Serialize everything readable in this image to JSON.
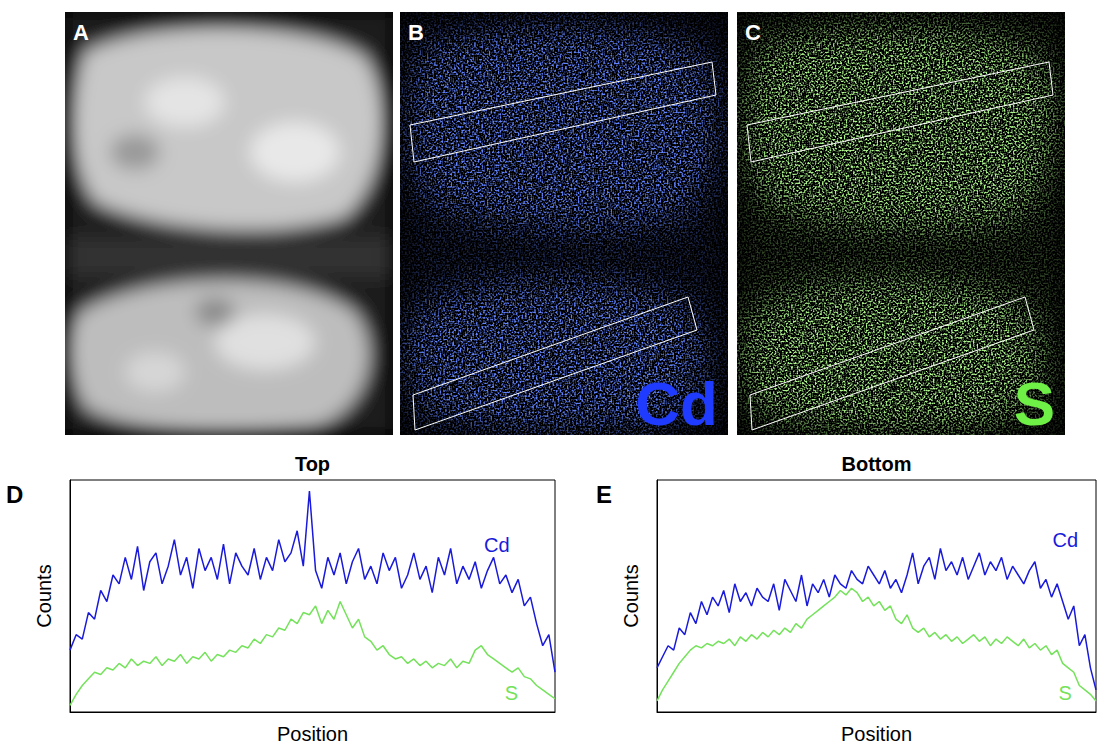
{
  "images": [
    {
      "panel": "A"
    },
    {
      "panel": "B",
      "label": "Cd",
      "color": "#1f3bff"
    },
    {
      "panel": "C",
      "label": "S",
      "color": "#6ef046"
    }
  ],
  "chart_data": [
    {
      "panel": "D",
      "type": "line",
      "title": "Top",
      "x_label": "Position",
      "y_label": "Counts",
      "xlim": [
        0,
        79
      ],
      "ylim": [
        0,
        105
      ],
      "tick_labels": false,
      "grid": false,
      "x": [
        0,
        1,
        2,
        3,
        4,
        5,
        6,
        7,
        8,
        9,
        10,
        11,
        12,
        13,
        14,
        15,
        16,
        17,
        18,
        19,
        20,
        21,
        22,
        23,
        24,
        25,
        26,
        27,
        28,
        29,
        30,
        31,
        32,
        33,
        34,
        35,
        36,
        37,
        38,
        39,
        40,
        41,
        42,
        43,
        44,
        45,
        46,
        47,
        48,
        49,
        50,
        51,
        52,
        53,
        54,
        55,
        56,
        57,
        58,
        59,
        60,
        61,
        62,
        63,
        64,
        65,
        66,
        67,
        68,
        69,
        70,
        71,
        72,
        73,
        74,
        75,
        76,
        77,
        78,
        79
      ],
      "series": [
        {
          "name": "Cd",
          "color": "#1a1adb",
          "values": [
            28,
            35,
            33,
            45,
            42,
            55,
            50,
            62,
            58,
            70,
            60,
            75,
            55,
            68,
            72,
            58,
            66,
            78,
            62,
            70,
            56,
            74,
            64,
            70,
            60,
            76,
            58,
            72,
            66,
            62,
            74,
            60,
            70,
            64,
            78,
            68,
            72,
            82,
            66,
            100,
            64,
            56,
            70,
            62,
            72,
            58,
            68,
            74,
            60,
            66,
            58,
            72,
            64,
            70,
            56,
            62,
            72,
            60,
            66,
            54,
            70,
            62,
            74,
            58,
            66,
            60,
            68,
            56,
            64,
            70,
            58,
            62,
            54,
            60,
            48,
            52,
            40,
            30,
            35,
            18
          ]
        },
        {
          "name": "S",
          "color": "#74e25a",
          "values": [
            3,
            8,
            12,
            15,
            18,
            17,
            20,
            19,
            22,
            20,
            24,
            21,
            23,
            22,
            25,
            21,
            24,
            23,
            26,
            22,
            25,
            24,
            27,
            23,
            26,
            25,
            28,
            27,
            30,
            29,
            33,
            31,
            35,
            34,
            38,
            37,
            42,
            40,
            45,
            44,
            48,
            40,
            46,
            42,
            50,
            44,
            38,
            42,
            34,
            32,
            28,
            30,
            26,
            24,
            25,
            22,
            24,
            21,
            23,
            20,
            22,
            21,
            24,
            20,
            23,
            22,
            28,
            30,
            26,
            24,
            22,
            20,
            18,
            20,
            16,
            15,
            12,
            10,
            8,
            6
          ]
        }
      ]
    },
    {
      "panel": "E",
      "type": "line",
      "title": "Bottom",
      "x_label": "Position",
      "y_label": "Counts",
      "xlim": [
        0,
        79
      ],
      "ylim": [
        0,
        105
      ],
      "tick_labels": false,
      "grid": false,
      "x": [
        0,
        1,
        2,
        3,
        4,
        5,
        6,
        7,
        8,
        9,
        10,
        11,
        12,
        13,
        14,
        15,
        16,
        17,
        18,
        19,
        20,
        21,
        22,
        23,
        24,
        25,
        26,
        27,
        28,
        29,
        30,
        31,
        32,
        33,
        34,
        35,
        36,
        37,
        38,
        39,
        40,
        41,
        42,
        43,
        44,
        45,
        46,
        47,
        48,
        49,
        50,
        51,
        52,
        53,
        54,
        55,
        56,
        57,
        58,
        59,
        60,
        61,
        62,
        63,
        64,
        65,
        66,
        67,
        68,
        69,
        70,
        71,
        72,
        73,
        74,
        75,
        76,
        77,
        78,
        79
      ],
      "series": [
        {
          "name": "Cd",
          "color": "#1a1adb",
          "values": [
            20,
            25,
            30,
            28,
            38,
            35,
            45,
            40,
            50,
            44,
            52,
            48,
            55,
            45,
            58,
            50,
            54,
            48,
            56,
            52,
            50,
            58,
            46,
            60,
            55,
            50,
            62,
            48,
            58,
            54,
            60,
            52,
            62,
            58,
            56,
            64,
            60,
            58,
            66,
            62,
            58,
            64,
            56,
            60,
            54,
            62,
            72,
            58,
            66,
            70,
            60,
            74,
            64,
            68,
            62,
            70,
            60,
            66,
            72,
            62,
            68,
            64,
            70,
            60,
            66,
            62,
            58,
            64,
            68,
            56,
            60,
            52,
            58,
            50,
            42,
            48,
            30,
            35,
            20,
            10
          ]
        },
        {
          "name": "S",
          "color": "#74e25a",
          "values": [
            5,
            10,
            14,
            18,
            22,
            25,
            28,
            30,
            29,
            31,
            30,
            32,
            31,
            33,
            30,
            34,
            32,
            35,
            33,
            36,
            34,
            37,
            35,
            38,
            36,
            40,
            38,
            42,
            44,
            46,
            48,
            50,
            52,
            55,
            53,
            56,
            54,
            50,
            52,
            48,
            50,
            46,
            48,
            42,
            40,
            44,
            38,
            36,
            38,
            34,
            36,
            33,
            35,
            32,
            34,
            31,
            33,
            35,
            32,
            34,
            30,
            33,
            31,
            34,
            32,
            30,
            33,
            29,
            31,
            28,
            30,
            26,
            28,
            22,
            20,
            18,
            12,
            10,
            8,
            5
          ]
        }
      ]
    }
  ]
}
